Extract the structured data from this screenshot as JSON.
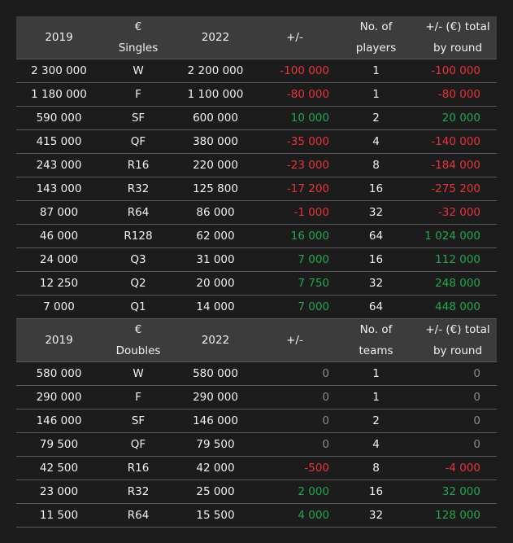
{
  "sections": [
    {
      "header": [
        "2019",
        "€\nSingles",
        "2022",
        "+/-",
        "No. of\nplayers",
        "+/- (€) total\nby round"
      ],
      "rows": [
        [
          "2 300 000",
          "W",
          "2 200 000",
          "-100 000",
          "1",
          "-100 000"
        ],
        [
          "1 180 000",
          "F",
          "1 100 000",
          "-80 000",
          "1",
          "-80 000"
        ],
        [
          "590 000",
          "SF",
          "600 000",
          "10 000",
          "2",
          "20 000"
        ],
        [
          "415 000",
          "QF",
          "380 000",
          "-35 000",
          "4",
          "-140 000"
        ],
        [
          "243 000",
          "R16",
          "220 000",
          "-23 000",
          "8",
          "-184 000"
        ],
        [
          "143 000",
          "R32",
          "125 800",
          "-17 200",
          "16",
          "-275 200"
        ],
        [
          "87 000",
          "R64",
          "86 000",
          "-1 000",
          "32",
          "-32 000"
        ],
        [
          "46 000",
          "R128",
          "62 000",
          "16 000",
          "64",
          "1 024 000"
        ],
        [
          "24 000",
          "Q3",
          "31 000",
          "7 000",
          "16",
          "112 000"
        ],
        [
          "12 250",
          "Q2",
          "20 000",
          "7 750",
          "32",
          "248 000"
        ],
        [
          "7 000",
          "Q1",
          "14 000",
          "7 000",
          "64",
          "448 000"
        ]
      ]
    },
    {
      "header": [
        "2019",
        "€\nDoubles",
        "2022",
        "+/-",
        "No. of\nteams",
        "+/- (€) total\nby round"
      ],
      "rows": [
        [
          "580 000",
          "W",
          "580 000",
          "0",
          "1",
          "0"
        ],
        [
          "290 000",
          "F",
          "290 000",
          "0",
          "1",
          "0"
        ],
        [
          "146 000",
          "SF",
          "146 000",
          "0",
          "2",
          "0"
        ],
        [
          "79 500",
          "QF",
          "79 500",
          "0",
          "4",
          "0"
        ],
        [
          "42 500",
          "R16",
          "42 000",
          "-500",
          "8",
          "-4 000"
        ],
        [
          "23 000",
          "R32",
          "25 000",
          "2 000",
          "16",
          "32 000"
        ],
        [
          "11 500",
          "R64",
          "15 500",
          "4 000",
          "32",
          "128 000"
        ]
      ]
    }
  ]
}
